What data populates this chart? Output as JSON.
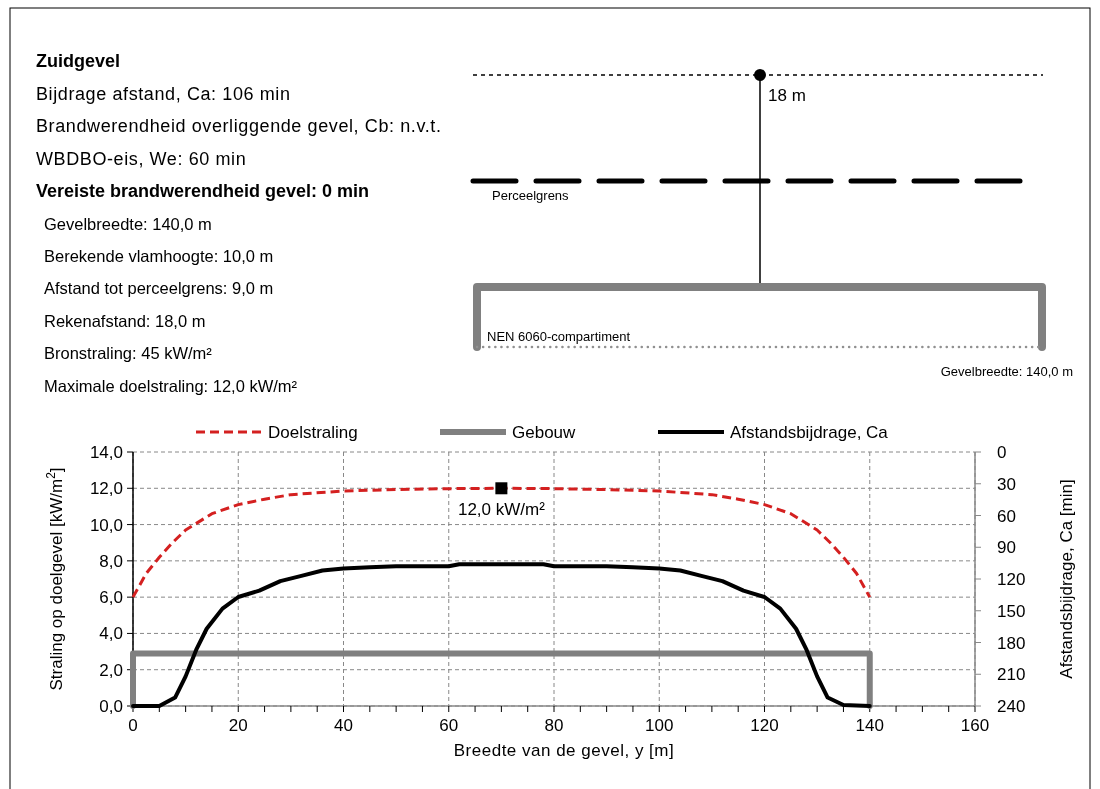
{
  "chart_data": [
    {
      "type": "other",
      "title": "Zuidgevel",
      "annotations": [
        "Bijdrage afstand, Ca: 106 min",
        "Brandwerendheid overliggende gevel, Cb: n.v.t.",
        "WBDBO-eis, We: 60 min",
        "Vereiste brandwerendheid gevel: 0 min",
        "Gevelbreedte: 140,0 m",
        "Berekende vlamhoogte: 10,0 m",
        "Afstand tot perceelgrens: 9,0 m",
        "Rekenafstand: 18,0 m",
        "Bronstraling: 45 kW/m²",
        "Maximale doelstraling: 12,0 kW/m²"
      ]
    },
    {
      "type": "other",
      "annotations": [
        "18 m",
        "Perceelgrens",
        "NEN 6060-compartiment",
        "Gevelbreedte:  140,0 m"
      ]
    },
    {
      "type": "line",
      "xlabel": "Breedte van de gevel, y [m]",
      "ylabel": "Straling op doelgevel [kW/m$^{2}$]",
      "y2label": "Afstandsbijdrage, Ca [min]",
      "xlim": [
        0,
        160
      ],
      "xticks": [
        0,
        {
          "value": 5,
          "label": null
        },
        {
          "value": 10,
          "label": null
        },
        {
          "value": 15,
          "label": null
        },
        20,
        {
          "value": 25,
          "label": null
        },
        {
          "value": 30,
          "label": null
        },
        {
          "value": 35,
          "label": null
        },
        40,
        {
          "value": 45,
          "label": null
        },
        {
          "value": 50,
          "label": null
        },
        {
          "value": 55,
          "label": null
        },
        60,
        {
          "value": 65,
          "label": null
        },
        {
          "value": 70,
          "label": null
        },
        {
          "value": 75,
          "label": null
        },
        80,
        {
          "value": 85,
          "label": null
        },
        {
          "value": 90,
          "label": null
        },
        {
          "value": 95,
          "label": null
        },
        100,
        {
          "value": 105,
          "label": null
        },
        {
          "value": 110,
          "label": null
        },
        {
          "value": 115,
          "label": null
        },
        120,
        {
          "value": 125,
          "label": null
        },
        {
          "value": 130,
          "label": null
        },
        {
          "value": 135,
          "label": null
        },
        140,
        {
          "value": 145,
          "label": null
        },
        {
          "value": 150,
          "label": null
        },
        {
          "value": 155,
          "label": null
        },
        160
      ],
      "ylim": [
        0,
        14
      ],
      "yticks": [
        {
          "value": 0,
          "label": "0,0"
        },
        {
          "value": 2,
          "label": "2,0"
        },
        {
          "value": 4,
          "label": "4,0"
        },
        {
          "value": 6,
          "label": "6,0"
        },
        {
          "value": 8,
          "label": "8,0"
        },
        {
          "value": 10,
          "label": "10,0"
        },
        {
          "value": 12,
          "label": "12,0"
        },
        {
          "value": 14,
          "label": "14,0"
        }
      ],
      "y2lim": [
        240,
        0
      ],
      "y2ticks": [
        0,
        30,
        60,
        90,
        120,
        150,
        180,
        210,
        240
      ],
      "grid": true,
      "legend": "top",
      "marker": "none",
      "annotations": [
        {
          "text": "12,0 kW/m²",
          "x": 70,
          "y": 12
        }
      ],
      "series": [
        {
          "name": "Doelstraling",
          "type": "line",
          "color": "#d42020",
          "line_style": "dashed",
          "x": [
            0,
            2.5,
            5,
            7.5,
            10,
            15,
            20,
            25,
            30,
            40,
            50,
            60,
            70,
            80,
            90,
            100,
            110,
            115,
            120,
            125,
            130,
            132.5,
            135,
            137.5,
            140
          ],
          "values": [
            6.0,
            7.3,
            8.2,
            9.0,
            9.7,
            10.6,
            11.1,
            11.4,
            11.65,
            11.85,
            11.93,
            11.98,
            12.0,
            11.98,
            11.93,
            11.85,
            11.65,
            11.4,
            11.1,
            10.6,
            9.7,
            9.0,
            8.2,
            7.3,
            6.0
          ]
        },
        {
          "name": "Gebouw",
          "type": "line",
          "color": "#808080",
          "line_style": "solid",
          "x": [
            0,
            0,
            140,
            140
          ],
          "values": [
            0,
            2.9,
            2.9,
            0
          ]
        },
        {
          "name": "Afstandsbijdrage, Ca",
          "type": "line",
          "axis": "y2",
          "color": "#000000",
          "line_style": "solid",
          "x": [
            0,
            5,
            8,
            10,
            12,
            14,
            17,
            20,
            24,
            28,
            32,
            36,
            40,
            45,
            50,
            60,
            62,
            78,
            80,
            90,
            95,
            100,
            104,
            108,
            112,
            116,
            120,
            123,
            126,
            128,
            130,
            132,
            135,
            140
          ],
          "values": [
            240,
            240,
            232,
            212,
            187,
            167,
            148,
            137,
            131,
            122,
            117,
            112,
            110,
            109,
            108,
            108,
            106,
            106,
            108,
            108,
            109,
            110,
            112,
            117,
            122,
            131,
            137,
            148,
            167,
            187,
            212,
            232,
            239,
            240
          ]
        },
        {
          "type": "scatter",
          "color": "#000000",
          "marker": "square",
          "x": [
            70
          ],
          "values": [
            12
          ]
        }
      ]
    }
  ]
}
